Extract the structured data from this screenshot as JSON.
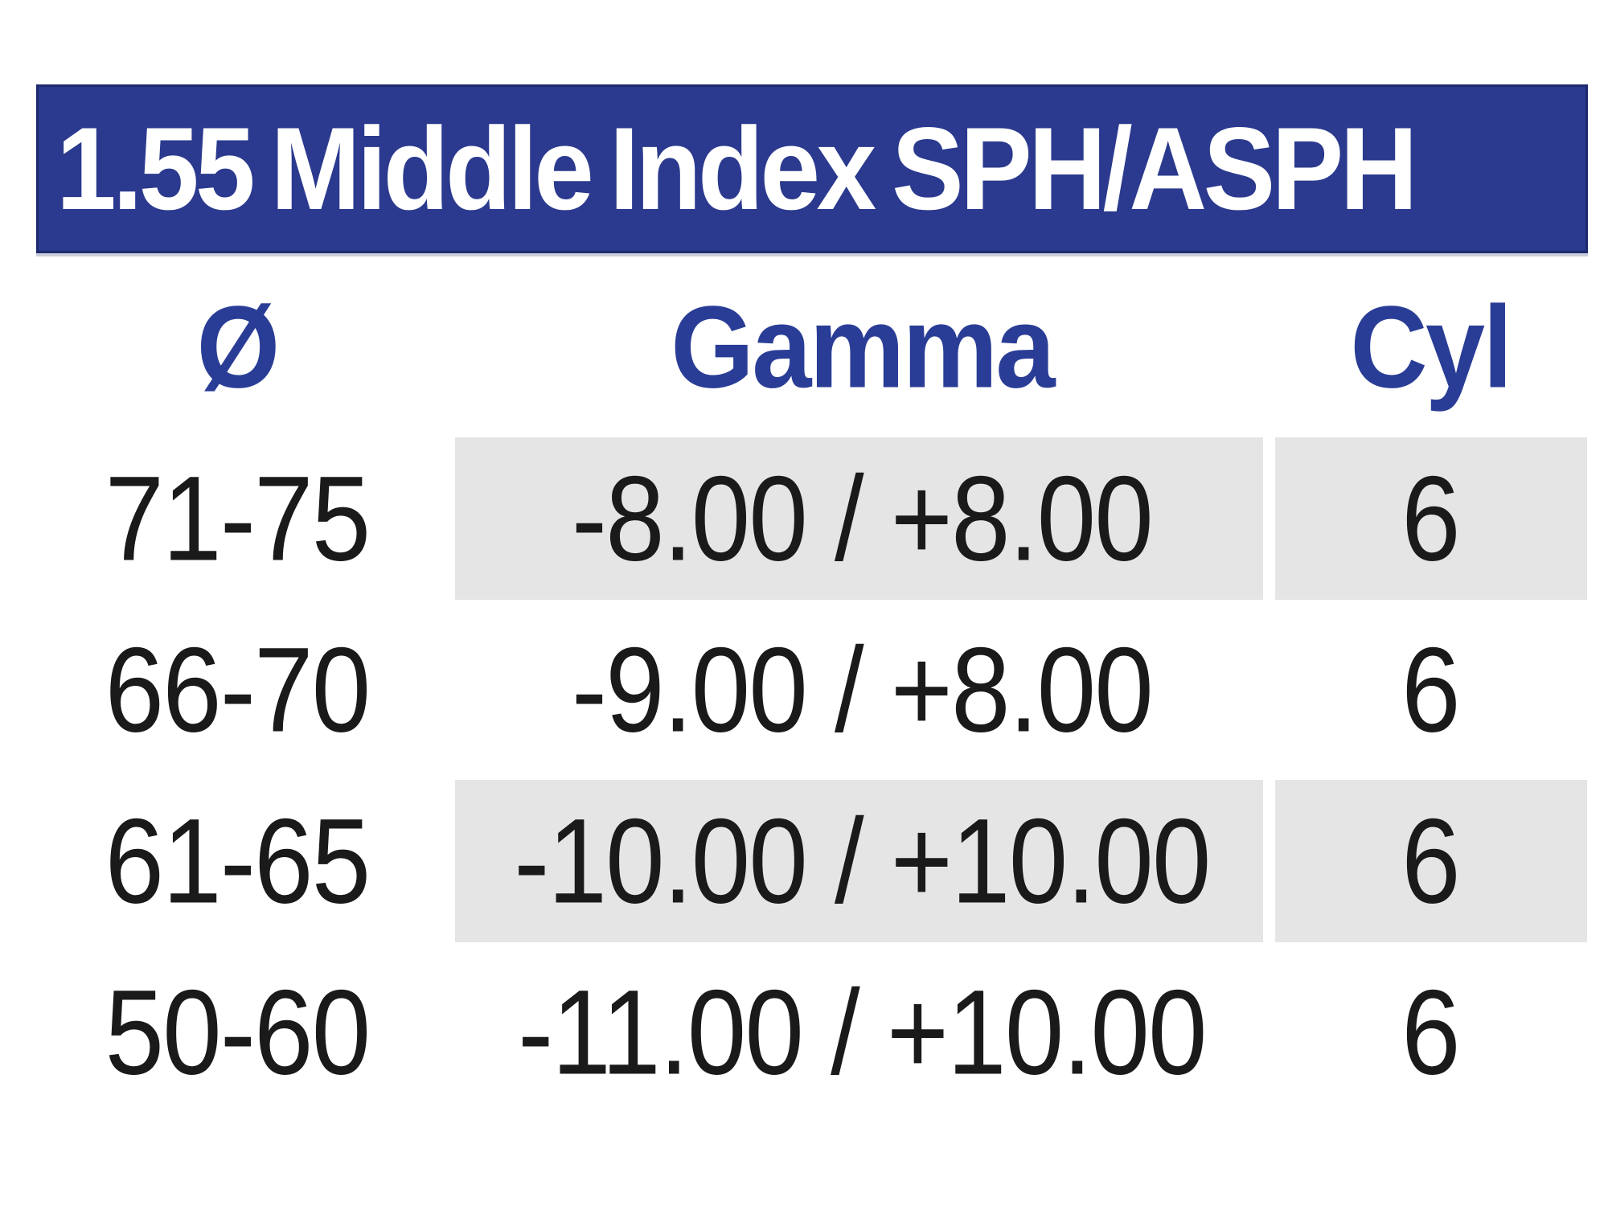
{
  "header": {
    "title": "1.55 Middle Index SPH/ASPH"
  },
  "table": {
    "columns": [
      {
        "label": "Ø"
      },
      {
        "label": "Gamma"
      },
      {
        "label": "Cyl"
      }
    ],
    "rows": [
      {
        "diameter": "71-75",
        "gamma": "-8.00 / +8.00",
        "cyl": "6",
        "shaded": true
      },
      {
        "diameter": "66-70",
        "gamma": "-9.00 / +8.00",
        "cyl": "6",
        "shaded": false
      },
      {
        "diameter": "61-65",
        "gamma": "-10.00 / +10.00",
        "cyl": "6",
        "shaded": true
      },
      {
        "diameter": "50-60",
        "gamma": "-11.00 / +10.00",
        "cyl": "6",
        "shaded": false
      }
    ]
  },
  "colors": {
    "header_bg": "#2b3a8e",
    "header_border": "#1d2a6e",
    "header_text": "#ffffff",
    "column_header_text": "#2a3d96",
    "row_text": "#1a1a1a",
    "shaded_cell_bg": "#e5e5e6",
    "page_bg": "#ffffff"
  }
}
